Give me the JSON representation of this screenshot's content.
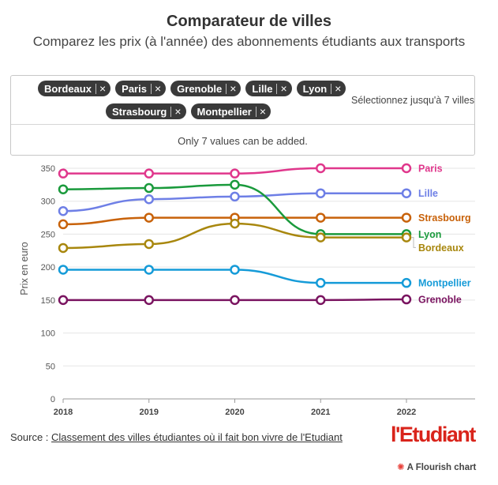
{
  "header": {
    "title": "Comparateur de villes",
    "subtitle": "Comparez les prix (à l'année) des abonnements étudiants aux transports"
  },
  "filter": {
    "chips_row1": [
      "Bordeaux",
      "Paris",
      "Grenoble",
      "Lille",
      "Lyon"
    ],
    "chips_row2": [
      "Strasbourg",
      "Montpellier"
    ],
    "remove_glyph": "×",
    "placeholder": "Sélectionnez jusqu'à 7 villes",
    "notice": "Only 7 values can be added."
  },
  "chart_data": {
    "type": "line",
    "ylabel": "Prix en euro",
    "xlabel": "",
    "x": [
      "2018",
      "2019",
      "2020",
      "2021",
      "2022"
    ],
    "ylim": [
      0,
      350
    ],
    "yticks": [
      0,
      50,
      100,
      150,
      200,
      250,
      300,
      350
    ],
    "series": [
      {
        "name": "Paris",
        "color": "#e0378c",
        "values": [
          342,
          342,
          342,
          350,
          350
        ]
      },
      {
        "name": "Lille",
        "color": "#6e7fe6",
        "values": [
          285,
          303,
          307,
          312,
          312
        ]
      },
      {
        "name": "Strasbourg",
        "color": "#c8620a",
        "values": [
          265,
          275,
          275,
          275,
          275
        ]
      },
      {
        "name": "Lyon",
        "color": "#1a9a3c",
        "values": [
          318,
          320,
          325,
          250,
          250
        ]
      },
      {
        "name": "Bordeaux",
        "color": "#a8870e",
        "values": [
          229,
          235,
          266,
          245,
          245
        ]
      },
      {
        "name": "Montpellier",
        "color": "#159bd8",
        "values": [
          196,
          196,
          196,
          176,
          176
        ]
      },
      {
        "name": "Grenoble",
        "color": "#7a1460",
        "values": [
          150,
          150,
          150,
          150,
          151
        ]
      }
    ]
  },
  "footer": {
    "source_prefix": "Source : ",
    "source_link": "Classement des villes étudiantes où il fait bon vivre de l'Etudiant",
    "logo": "l'Etudiant",
    "flourish_mark": "✺",
    "flourish_label": "A Flourish chart"
  }
}
